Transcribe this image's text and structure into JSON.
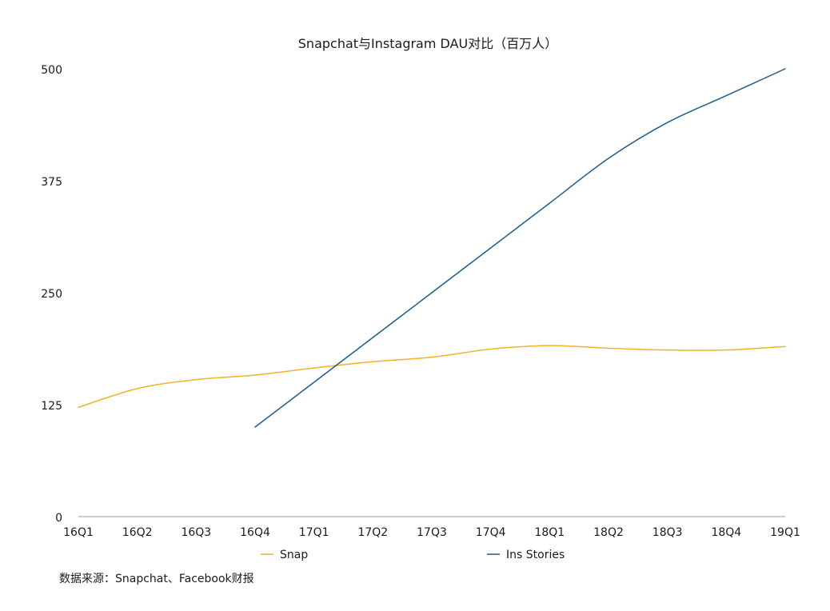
{
  "chart_data": {
    "type": "line",
    "title": "Snapchat与Instagram DAU对比（百万人）",
    "categories": [
      "16Q1",
      "16Q2",
      "16Q3",
      "16Q4",
      "17Q1",
      "17Q2",
      "17Q3",
      "17Q4",
      "18Q1",
      "18Q2",
      "18Q3",
      "18Q4",
      "19Q1"
    ],
    "yticks": [
      "0",
      "125",
      "250",
      "375",
      "500"
    ],
    "ylim": [
      0,
      500
    ],
    "grid": false,
    "legend_position": "bottom",
    "series": [
      {
        "name": "Snap",
        "color": "#f0b323",
        "values": [
          122,
          143,
          153,
          158,
          166,
          173,
          178,
          187,
          191,
          188,
          186,
          186,
          190
        ]
      },
      {
        "name": "Ins Stories",
        "color": "#1f5d8a",
        "values": [
          null,
          null,
          null,
          100,
          150,
          200,
          250,
          300,
          350,
          400,
          440,
          470,
          500
        ]
      }
    ],
    "source_note": "数据来源：Snapchat、Facebook财报"
  }
}
